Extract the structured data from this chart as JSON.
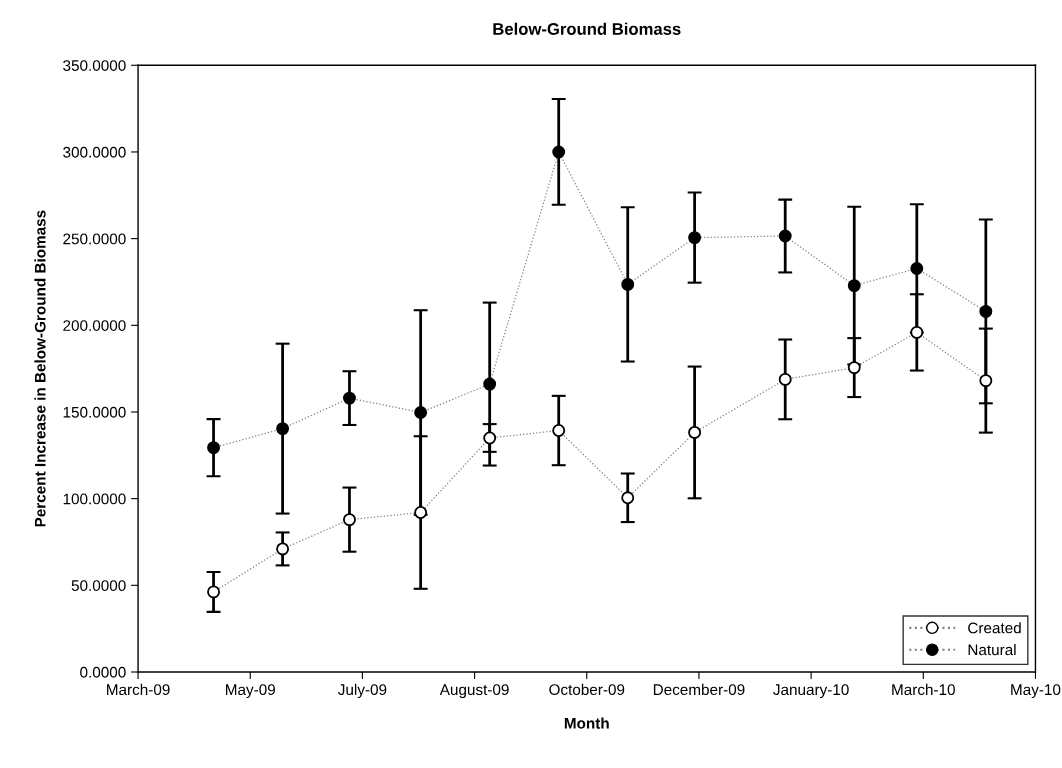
{
  "chart_data": {
    "type": "line",
    "title": "Below-Ground Biomass",
    "xlabel": "Month",
    "ylabel": "Percent Increase in Below-Ground Biomass",
    "x": [
      "2009-04-29",
      "2009-05-31",
      "2009-07-01",
      "2009-08-03",
      "2009-09-04",
      "2009-10-06",
      "2009-11-07",
      "2009-12-08",
      "2010-01-19",
      "2010-02-20",
      "2010-03-21",
      "2010-04-22"
    ],
    "series": [
      {
        "name": "Created",
        "color": "#ffffff",
        "values": [
          46.2,
          71.0,
          87.9,
          92.0,
          135.0,
          139.3,
          100.5,
          138.2,
          168.8,
          175.6,
          195.9,
          168.1
        ],
        "errors": [
          11.5,
          9.5,
          18.5,
          44,
          8,
          20,
          14,
          38,
          23,
          17,
          22,
          30
        ]
      },
      {
        "name": "Natural",
        "color": "#000000",
        "values": [
          129.4,
          140.4,
          158.0,
          149.7,
          166.1,
          300.0,
          223.6,
          250.6,
          251.5,
          222.9,
          232.8,
          208.0
        ],
        "errors": [
          16.5,
          49,
          15.5,
          59,
          47,
          30.5,
          44.5,
          26,
          21,
          45.5,
          37,
          53
        ]
      }
    ],
    "xlim": [
      "2009-03-25",
      "2010-05-15"
    ],
    "xticks": [
      {
        "value": "2009-03-25",
        "label": "March-09"
      },
      {
        "value": "2009-05-16",
        "label": "May-09"
      },
      {
        "value": "2009-07-07",
        "label": "July-09"
      },
      {
        "value": "2009-08-28",
        "label": "August-09"
      },
      {
        "value": "2009-10-19",
        "label": "October-09"
      },
      {
        "value": "2009-12-10",
        "label": "December-09"
      },
      {
        "value": "2010-01-31",
        "label": "January-10"
      },
      {
        "value": "2010-03-24",
        "label": "March-10"
      },
      {
        "value": "2010-05-15",
        "label": "May-10"
      }
    ],
    "ylim": [
      0,
      350
    ],
    "yticks": [
      {
        "value": 0,
        "label": "0.0000"
      },
      {
        "value": 50,
        "label": "50.0000"
      },
      {
        "value": 100,
        "label": "100.0000"
      },
      {
        "value": 150,
        "label": "150.0000"
      },
      {
        "value": 200,
        "label": "200.0000"
      },
      {
        "value": 250,
        "label": "250.0000"
      },
      {
        "value": 300,
        "label": "300.0000"
      },
      {
        "value": 350,
        "label": "350.0000"
      }
    ],
    "grid": false,
    "legend": "lower right",
    "marker": "circle",
    "line_style": "dotted"
  }
}
